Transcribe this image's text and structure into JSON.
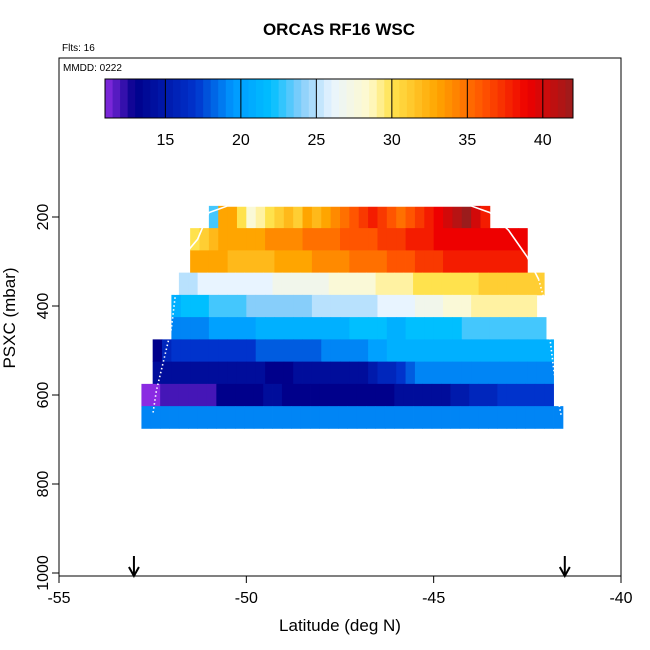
{
  "chart_data": {
    "type": "heatmap",
    "title": "ORCAS RF16 WSC",
    "annotations": {
      "flights": "Flts: 16",
      "date": "MMDD: 0222"
    },
    "xlabel": "Latitude (deg N)",
    "ylabel": "PSXC (mbar)",
    "xlim": [
      -55,
      -40
    ],
    "ylim": [
      1000,
      0
    ],
    "x_ticks": [
      "-55",
      "-50",
      "-45",
      "-40"
    ],
    "x_tick_values": [
      -55,
      -50,
      -45,
      -40
    ],
    "y_ticks": [
      "200",
      "400",
      "600",
      "800",
      "1000"
    ],
    "y_tick_values": [
      200,
      400,
      600,
      800,
      1000
    ],
    "colorbar": {
      "min": 11,
      "max": 42,
      "tick_values": [
        15,
        20,
        25,
        30,
        35,
        40
      ],
      "tick_labels": [
        "15",
        "20",
        "25",
        "30",
        "35",
        "40"
      ],
      "stops": [
        [
          11,
          "#8a2be2"
        ],
        [
          13,
          "#00008b"
        ],
        [
          17,
          "#0033cc"
        ],
        [
          19.5,
          "#0099ff"
        ],
        [
          22,
          "#00bfff"
        ],
        [
          24,
          "#87cefa"
        ],
        [
          26,
          "#e8f4ff"
        ],
        [
          28.5,
          "#fffacd"
        ],
        [
          30,
          "#ffe24d"
        ],
        [
          33,
          "#ffa500"
        ],
        [
          36,
          "#ff5500"
        ],
        [
          39,
          "#ee0000"
        ],
        [
          42,
          "#9b1c1c"
        ]
      ]
    },
    "grid": false,
    "x_step": 0.25,
    "rows": [
      {
        "p": [
          175,
          225
        ],
        "x": [
          -51.0,
          -43.5
        ],
        "values": [
          23,
          33,
          33,
          30,
          28,
          29,
          30,
          31,
          32,
          31,
          33,
          32,
          33,
          34,
          35,
          36,
          37,
          38,
          37,
          36,
          35,
          36,
          37,
          38,
          39,
          40,
          41,
          42,
          40,
          38
        ]
      },
      {
        "p": [
          225,
          275
        ],
        "x": [
          -51.5,
          -42.5
        ],
        "values": [
          30,
          31,
          32,
          33,
          33,
          33,
          33,
          33,
          34,
          34,
          34,
          34,
          35,
          35,
          35,
          35,
          36,
          36,
          36,
          36,
          37,
          37,
          37,
          38,
          38,
          38,
          39,
          39,
          39,
          39,
          39,
          39,
          39,
          39,
          39,
          39
        ]
      },
      {
        "p": [
          275,
          325
        ],
        "x": [
          -51.5,
          -42.5
        ],
        "values": [
          33,
          33,
          33,
          33,
          32,
          32,
          32,
          32,
          32,
          33,
          33,
          33,
          33,
          34,
          34,
          34,
          34,
          35,
          35,
          35,
          35,
          36,
          36,
          36,
          37,
          37,
          37,
          38,
          38,
          38,
          38,
          38,
          38,
          38,
          38,
          38
        ]
      },
      {
        "p": [
          325,
          375
        ],
        "x": [
          -51.8,
          -42.0
        ],
        "values": [
          25,
          25,
          26,
          26,
          26,
          26,
          26,
          26,
          26,
          26,
          27,
          27,
          27,
          27,
          27,
          27,
          28,
          28,
          28,
          28,
          28,
          29,
          29,
          29,
          29,
          30,
          30,
          30,
          30,
          30,
          30,
          30,
          31,
          31,
          31,
          31,
          31,
          31,
          31
        ]
      },
      {
        "p": [
          375,
          425
        ],
        "x": [
          -52.0,
          -42.2
        ],
        "values": [
          21,
          22,
          22,
          22,
          23,
          23,
          23,
          23,
          24,
          24,
          24,
          24,
          24,
          24,
          24,
          25,
          25,
          25,
          25,
          25,
          25,
          25,
          26,
          26,
          26,
          26,
          27,
          27,
          27,
          28,
          28,
          28,
          29,
          29,
          29,
          29,
          29,
          29,
          29
        ]
      },
      {
        "p": [
          425,
          475
        ],
        "x": [
          -52.0,
          -42.0
        ],
        "values": [
          19,
          19,
          19,
          19,
          20,
          20,
          20,
          20,
          20,
          21,
          21,
          21,
          21,
          21,
          21,
          21,
          21,
          21,
          21,
          22,
          22,
          22,
          22,
          21,
          21,
          22,
          22,
          22,
          22,
          22,
          22,
          23,
          23,
          23,
          23,
          23,
          23,
          23,
          23,
          23
        ]
      },
      {
        "p": [
          475,
          525
        ],
        "x": [
          -52.5,
          -41.8
        ],
        "values": [
          13,
          16,
          17,
          17,
          17,
          17,
          17,
          17,
          17,
          17,
          17,
          18,
          18,
          18,
          18,
          18,
          18,
          18,
          19,
          19,
          19,
          19,
          19,
          20,
          20,
          21,
          21,
          21,
          21,
          21,
          21,
          21,
          21,
          21,
          21,
          21,
          21,
          21,
          21,
          21,
          21,
          21,
          21
        ]
      },
      {
        "p": [
          525,
          575
        ],
        "x": [
          -52.5,
          -41.8
        ],
        "values": [
          14,
          14,
          14,
          14,
          14,
          14,
          14,
          14,
          14,
          14,
          14,
          14,
          13,
          13,
          13,
          14,
          14,
          14,
          14,
          14,
          14,
          14,
          14,
          15,
          16,
          16,
          17,
          18,
          19,
          19,
          19,
          19,
          19,
          19,
          19,
          19,
          19,
          19,
          19,
          19,
          19,
          19,
          19
        ]
      },
      {
        "p": [
          575,
          625
        ],
        "x": [
          -52.8,
          -41.8
        ],
        "values": [
          11,
          11,
          12,
          12,
          12,
          12,
          12,
          12,
          13,
          13,
          13,
          13,
          13,
          14,
          14,
          13,
          13,
          13,
          13,
          13,
          13,
          13,
          13,
          13,
          13,
          13,
          13,
          14,
          14,
          14,
          14,
          14,
          14,
          15,
          15,
          16,
          16,
          16,
          17,
          17,
          17,
          17,
          17,
          17
        ]
      },
      {
        "p": [
          625,
          675
        ],
        "x": [
          -52.8,
          -41.5
        ],
        "values": [
          19,
          19,
          19,
          19,
          19,
          19,
          19,
          19,
          19,
          19,
          19,
          19,
          19,
          19,
          19,
          19,
          19,
          19,
          19,
          19,
          19,
          19,
          19,
          19,
          19,
          19,
          19,
          19,
          19,
          19,
          19,
          19,
          19,
          19,
          19,
          19,
          19,
          19,
          19,
          19,
          19,
          19,
          19,
          19,
          19
        ]
      }
    ],
    "profile": {
      "solid": {
        "x": [
          -51.8,
          -51.3,
          -51.0,
          -50.5,
          -44.0,
          -43.5,
          -43.0,
          -42.5,
          -42.2
        ],
        "y": [
          300,
          250,
          190,
          175,
          175,
          190,
          230,
          290,
          340
        ]
      },
      "dotted_left": {
        "x": [
          -51.8,
          -51.9,
          -52.0,
          -52.2,
          -52.4,
          -52.5
        ],
        "y": [
          300,
          380,
          450,
          520,
          590,
          645
        ]
      },
      "dotted_right": {
        "x": [
          -42.2,
          -42.0,
          -41.9,
          -41.8,
          -41.7,
          -41.6
        ],
        "y": [
          340,
          400,
          470,
          540,
          600,
          645
        ]
      }
    },
    "markers": {
      "x": [
        -53.0,
        -41.5
      ],
      "symbol": "down-arrow"
    }
  }
}
